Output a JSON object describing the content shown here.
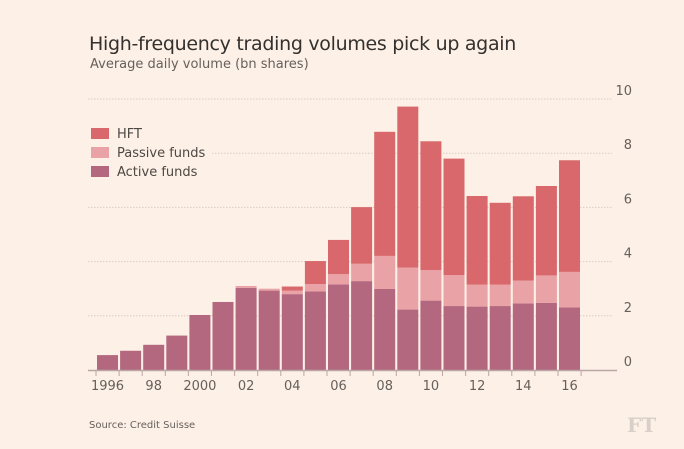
{
  "chart_data": {
    "type": "bar",
    "stacked": true,
    "title": "High-frequency trading volumes pick up again",
    "subtitle": "Average daily volume (bn shares)",
    "source": "Source: Credit Suisse",
    "logo": "FT",
    "categories": [
      "1996",
      "1997",
      "1998",
      "1999",
      "2000",
      "2001",
      "2002",
      "2003",
      "2004",
      "2005",
      "2006",
      "2007",
      "2008",
      "2009",
      "2010",
      "2011",
      "2012",
      "2013",
      "2014",
      "2015",
      "2016"
    ],
    "x_tick_labels": [
      "1996",
      "",
      "98",
      "",
      "2000",
      "",
      "02",
      "",
      "04",
      "",
      "06",
      "",
      "08",
      "",
      "10",
      "",
      "12",
      "",
      "14",
      "",
      "16"
    ],
    "y_ticks": [
      0,
      2,
      4,
      6,
      8,
      10
    ],
    "ylim": [
      0,
      10
    ],
    "y_axis_position": "right",
    "grid": true,
    "legend_position": "top-left",
    "series": [
      {
        "name": "Active funds",
        "color": "#b4687f",
        "values": [
          0.55,
          0.71,
          0.93,
          1.27,
          2.03,
          2.51,
          3.03,
          2.93,
          2.8,
          2.9,
          3.16,
          3.28,
          2.99,
          2.23,
          2.56,
          2.36,
          2.34,
          2.36,
          2.46,
          2.48,
          2.31
        ]
      },
      {
        "name": "Passive funds",
        "color": "#e9a2a6",
        "values": [
          0,
          0,
          0,
          0,
          0,
          0,
          0.07,
          0.07,
          0.13,
          0.27,
          0.38,
          0.64,
          1.22,
          1.55,
          1.13,
          1.14,
          0.81,
          0.79,
          0.84,
          1.01,
          1.31
        ]
      },
      {
        "name": "HFT",
        "color": "#d8686c",
        "values": [
          0,
          0,
          0,
          0,
          0,
          0,
          0,
          0,
          0.15,
          0.85,
          1.26,
          2.09,
          4.58,
          5.94,
          4.75,
          4.3,
          3.27,
          3.02,
          3.11,
          3.3,
          4.12
        ]
      }
    ],
    "legend_order": [
      "HFT",
      "Passive funds",
      "Active funds"
    ]
  }
}
